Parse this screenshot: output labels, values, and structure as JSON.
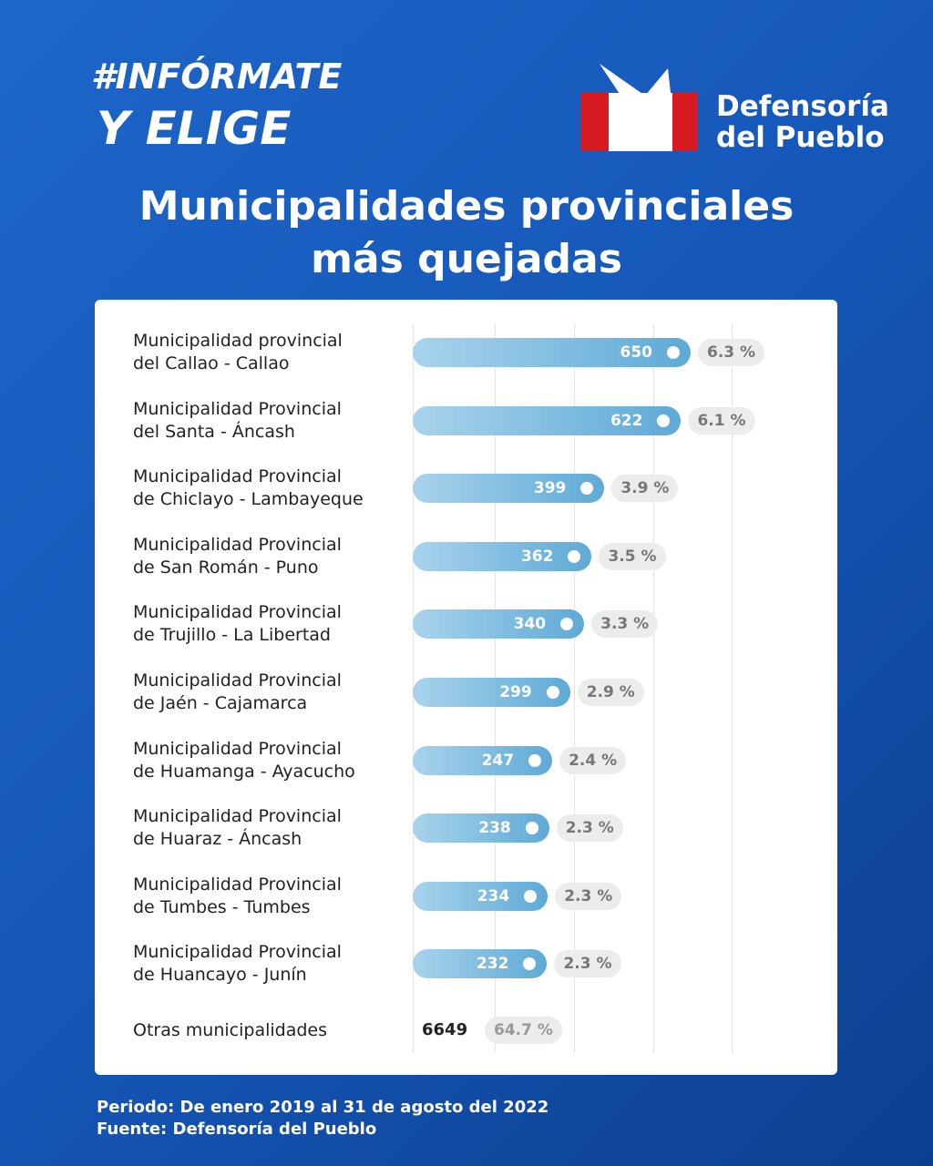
{
  "branding": {
    "campaign_line1": "#INFÓRMATE",
    "campaign_line2": "Y ELIGE",
    "institution_line1": "Defensoría",
    "institution_line2": "del Pueblo"
  },
  "chart_data": {
    "type": "bar",
    "title": "Municipalidades provinciales\nmás quejadas",
    "categories": [
      "Municipalidad provincial\ndel Callao - Callao",
      "Municipalidad Provincial\ndel Santa - Áncash",
      "Municipalidad Provincial\nde Chiclayo - Lambayeque",
      "Municipalidad Provincial\nde San Román - Puno",
      "Municipalidad Provincial\nde Trujillo - La Libertad",
      "Municipalidad Provincial\nde Jaén - Cajamarca",
      "Municipalidad Provincial\nde Huamanga - Ayacucho",
      "Municipalidad Provincial\nde Huaraz - Áncash",
      "Municipalidad Provincial\nde Tumbes - Tumbes",
      "Municipalidad Provincial\nde Huancayo - Junín"
    ],
    "values": [
      650,
      622,
      399,
      362,
      340,
      299,
      247,
      238,
      234,
      232
    ],
    "shares": [
      6.3,
      6.1,
      3.9,
      3.5,
      3.3,
      2.9,
      2.4,
      2.3,
      2.3,
      2.3
    ],
    "share_labels": [
      "6.3 %",
      "6.1 %",
      "3.9 %",
      "3.5 %",
      "3.3 %",
      "2.9 %",
      "2.4 %",
      "2.3 %",
      "2.3 %",
      "2.3 %"
    ],
    "color": "#5eaad6",
    "other": {
      "label": "Otras municipalidades",
      "value": 6649,
      "share": 64.7,
      "share_label": "64.7 %"
    },
    "notes": [
      "Periodo: De enero 2019 al 31 de agosto del 2022",
      "Fuente: Defensoría del Pueblo"
    ]
  }
}
